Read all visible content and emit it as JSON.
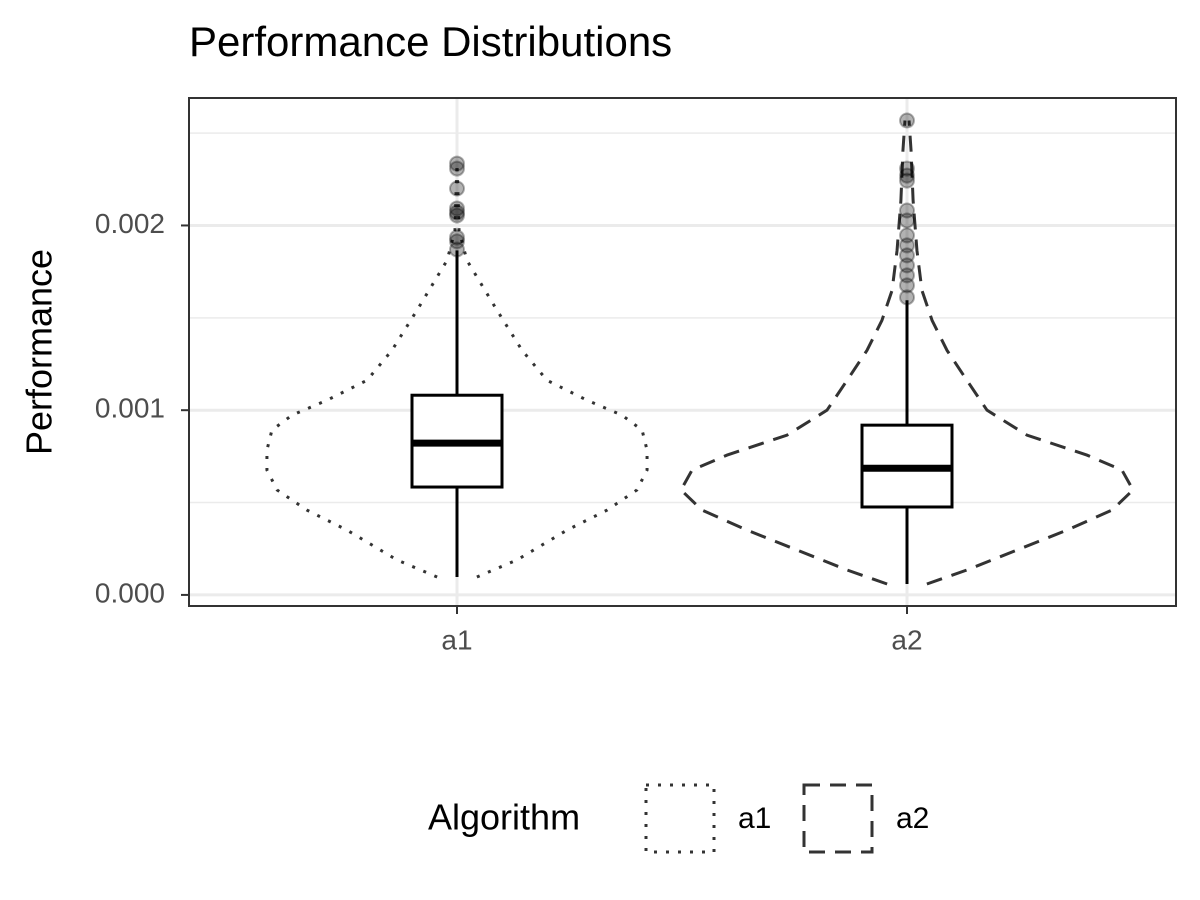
{
  "chart_data": {
    "type": "violin",
    "title": "Performance Distributions",
    "y_label": "Performance",
    "categories": [
      "a1",
      "a2"
    ],
    "ylim": [
      -6e-05,
      0.00269
    ],
    "yticks": [
      {
        "value": 0,
        "label": "0.000"
      },
      {
        "value": 0.001,
        "label": "0.001"
      },
      {
        "value": 0.002,
        "label": "0.002"
      }
    ],
    "yminor": [
      0.0005,
      0.0015,
      0.0025
    ],
    "grid": true,
    "legend_title": "Algorithm",
    "legend_position": "bottom",
    "outline_color": "#333333",
    "point_color": "#000000",
    "series": [
      {
        "name": "a1",
        "linetype": "dotted",
        "whisker_low": 9.7e-05,
        "q1": 0.000584,
        "median": 0.000822,
        "q3": 0.001081,
        "whisker_high": 0.001865,
        "outliers": [
          0.002335,
          0.002308,
          0.0022,
          0.002092,
          0.00207,
          0.002054,
          0.001935,
          0.001914,
          0.00187
        ],
        "violin_y": [
          9.7e-05,
          0.000189,
          0.000351,
          0.000459,
          0.000568,
          0.000676,
          0.000784,
          0.000892,
          0.000973,
          0.001054,
          0.001162,
          0.001324,
          0.001541,
          0.001811,
          0.001973,
          0.002189,
          0.002335
        ],
        "violin_density": [
          0.088,
          0.265,
          0.487,
          0.664,
          0.796,
          0.841,
          0.841,
          0.819,
          0.73,
          0.575,
          0.398,
          0.288,
          0.177,
          0.044,
          0.009,
          0.004,
          0
        ]
      },
      {
        "name": "a2",
        "linetype": "dashed",
        "whisker_low": 5.9e-05,
        "q1": 0.000476,
        "median": 0.000686,
        "q3": 0.000919,
        "whisker_high": 0.001595,
        "outliers": [
          0.002568,
          0.002308,
          0.00227,
          0.002243,
          0.002081,
          0.002027,
          0.001946,
          0.001892,
          0.001838,
          0.001784,
          0.00173,
          0.001676,
          0.001611
        ],
        "violin_y": [
          5.9e-05,
          0.000135,
          0.000243,
          0.000351,
          0.000459,
          0.000568,
          0.000676,
          0.000757,
          0.000865,
          0.001,
          0.001162,
          0.001324,
          0.001486,
          0.001649,
          0.001865,
          0.002135,
          0.002405,
          0.002568
        ],
        "violin_density": [
          0.088,
          0.265,
          0.487,
          0.708,
          0.907,
          1,
          0.951,
          0.796,
          0.531,
          0.354,
          0.265,
          0.177,
          0.111,
          0.066,
          0.044,
          0.027,
          0.018,
          0.009
        ]
      }
    ]
  }
}
